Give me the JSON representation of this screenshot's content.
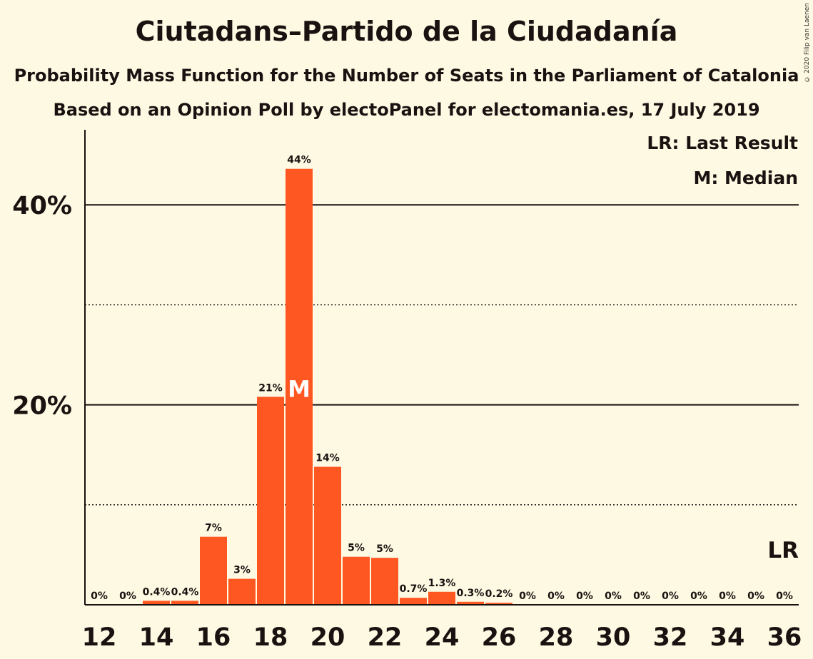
{
  "header": {
    "title": "Ciutadans–Partido de la Ciudadanía",
    "subtitle": "Probability Mass Function for the Number of Seats in the Parliament of Catalonia",
    "subtitle2": "Based on an Opinion Poll by electoPanel for electomania.es, 17 July 2019",
    "copyright": "© 2020 Filip van Laenen"
  },
  "legend": {
    "last_result": "LR: Last Result",
    "median": "M: Median"
  },
  "colors": {
    "background": "#fef9e2",
    "bar": "#ff5722",
    "text": "#1a1111"
  },
  "chart_data": {
    "type": "bar",
    "categories": [
      12,
      13,
      14,
      15,
      16,
      17,
      18,
      19,
      20,
      21,
      22,
      23,
      24,
      25,
      26,
      27,
      28,
      29,
      30,
      31,
      32,
      33,
      34,
      35,
      36
    ],
    "values": [
      0,
      0,
      0.4,
      0.4,
      7,
      3,
      21,
      44,
      14,
      5,
      5,
      0.7,
      1.3,
      0.3,
      0.2,
      0,
      0,
      0,
      0,
      0,
      0,
      0,
      0,
      0,
      0
    ],
    "plot_values": [
      0,
      0,
      0.4,
      0.4,
      6.8,
      2.6,
      20.8,
      43.6,
      13.8,
      4.8,
      4.7,
      0.7,
      1.3,
      0.3,
      0.2,
      0,
      0,
      0,
      0,
      0,
      0,
      0,
      0,
      0,
      0
    ],
    "value_labels": [
      "0%",
      "0%",
      "0.4%",
      "0.4%",
      "7%",
      "3%",
      "21%",
      "44%",
      "14%",
      "5%",
      "5%",
      "0.7%",
      "1.3%",
      "0.3%",
      "0.2%",
      "0%",
      "0%",
      "0%",
      "0%",
      "0%",
      "0%",
      "0%",
      "0%",
      "0%",
      "0%"
    ],
    "x_tick_labels": [
      "12",
      "14",
      "16",
      "18",
      "20",
      "22",
      "24",
      "26",
      "28",
      "30",
      "32",
      "34",
      "36"
    ],
    "y_tick_labels": [
      "20%",
      "40%"
    ],
    "y_major_ticks": [
      20,
      40
    ],
    "y_minor_ticks": [
      10,
      30
    ],
    "ylim": [
      0,
      47
    ],
    "median_seat": 19,
    "median_marker": "M",
    "last_result_seat": 36,
    "last_result_marker": "LR"
  }
}
